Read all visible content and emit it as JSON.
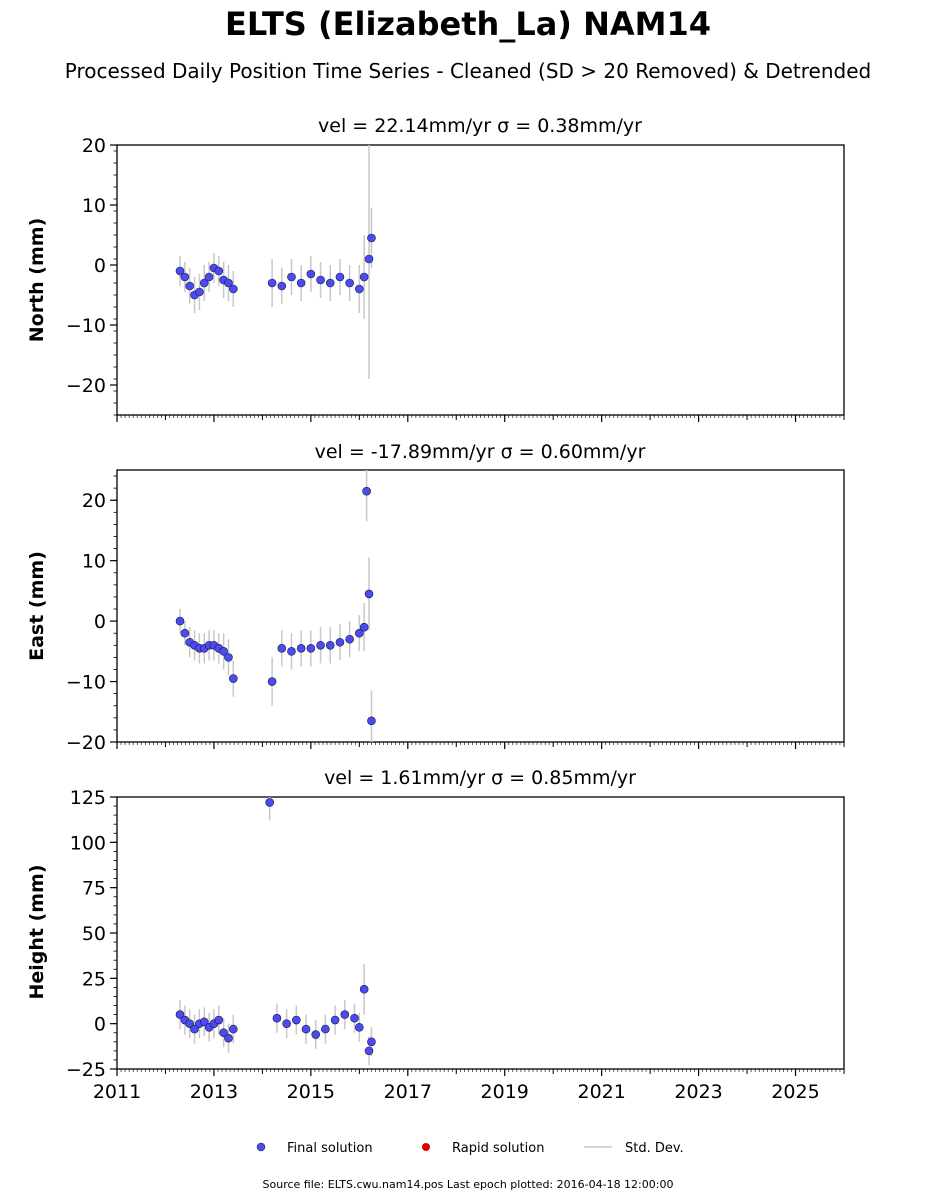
{
  "header": {
    "title": "ELTS (Elizabeth_La) NAM14",
    "subtitle": "Processed Daily Position Time Series - Cleaned (SD > 20 Removed) & Detrended"
  },
  "legend": {
    "final": "Final solution",
    "rapid": "Rapid solution",
    "stddev": "Std. Dev."
  },
  "footer": "Source file: ELTS.cwu.nam14.pos  Last epoch plotted: 2016-04-18 12:00:00",
  "colors": {
    "final": "#4b4bf0",
    "rapid": "#e00000",
    "stddev": "#c8c8c8"
  },
  "chart_data": [
    {
      "type": "scatter",
      "panel": "north",
      "title": "vel = 22.14mm/yr   σ = 0.38mm/yr",
      "ylabel": "North (mm)",
      "xlim": [
        2011,
        2026
      ],
      "ylim": [
        -25,
        20
      ],
      "yticks": [
        -20,
        -10,
        0,
        10,
        20
      ],
      "series": [
        {
          "name": "Final solution",
          "x": [
            2012.3,
            2012.4,
            2012.5,
            2012.6,
            2012.7,
            2012.8,
            2012.9,
            2013.0,
            2013.1,
            2013.2,
            2013.3,
            2013.4,
            2014.2,
            2014.4,
            2014.6,
            2014.8,
            2015.0,
            2015.2,
            2015.4,
            2015.6,
            2015.8,
            2016.0,
            2016.1,
            2016.2,
            2016.25
          ],
          "y": [
            -1,
            -2,
            -3.5,
            -5,
            -4.5,
            -3,
            -2,
            -0.5,
            -1,
            -2.5,
            -3,
            -4,
            -3,
            -3.5,
            -2,
            -3,
            -1.5,
            -2.5,
            -3,
            -2,
            -3,
            -4,
            -2,
            1,
            4.5
          ],
          "sd": [
            2.5,
            2.5,
            3,
            3,
            3,
            3,
            2.5,
            2.5,
            2.5,
            3,
            3,
            3,
            4,
            3,
            3,
            3,
            3,
            3,
            3,
            3,
            3,
            4,
            7,
            20,
            5
          ]
        }
      ]
    },
    {
      "type": "scatter",
      "panel": "east",
      "title": "vel = -17.89mm/yr   σ = 0.60mm/yr",
      "ylabel": "East (mm)",
      "xlim": [
        2011,
        2026
      ],
      "ylim": [
        -20,
        25
      ],
      "yticks": [
        -20,
        -10,
        0,
        10,
        20
      ],
      "series": [
        {
          "name": "Final solution",
          "x": [
            2012.3,
            2012.4,
            2012.5,
            2012.6,
            2012.7,
            2012.8,
            2012.9,
            2013.0,
            2013.1,
            2013.2,
            2013.3,
            2013.4,
            2014.2,
            2014.4,
            2014.6,
            2014.8,
            2015.0,
            2015.2,
            2015.4,
            2015.6,
            2015.8,
            2016.0,
            2016.1,
            2016.15,
            2016.2,
            2016.25
          ],
          "y": [
            0,
            -2,
            -3.5,
            -4,
            -4.5,
            -4.5,
            -4,
            -4,
            -4.5,
            -5,
            -6,
            -9.5,
            -10,
            -4.5,
            -5,
            -4.5,
            -4.5,
            -4,
            -4,
            -3.5,
            -3,
            -2,
            -1,
            21.5,
            4.5,
            -16.5
          ],
          "sd": [
            2,
            2,
            2.5,
            2.5,
            2.5,
            2.5,
            2.5,
            2.5,
            2.5,
            3,
            3,
            3,
            4,
            3,
            3,
            3,
            3,
            3,
            3,
            3,
            3,
            3,
            4,
            5,
            6,
            5
          ]
        }
      ]
    },
    {
      "type": "scatter",
      "panel": "height",
      "title": "vel = 1.61mm/yr   σ = 0.85mm/yr",
      "ylabel": "Height (mm)",
      "xlim": [
        2011,
        2026
      ],
      "ylim": [
        -25,
        125
      ],
      "yticks": [
        -25,
        0,
        25,
        50,
        75,
        100,
        125
      ],
      "xticks": [
        2011,
        2013,
        2015,
        2017,
        2019,
        2021,
        2023,
        2025
      ],
      "series": [
        {
          "name": "Final solution",
          "x": [
            2012.3,
            2012.4,
            2012.5,
            2012.6,
            2012.7,
            2012.8,
            2012.9,
            2013.0,
            2013.1,
            2013.2,
            2013.3,
            2013.4,
            2014.15,
            2014.3,
            2014.5,
            2014.7,
            2014.9,
            2015.1,
            2015.3,
            2015.5,
            2015.7,
            2015.9,
            2016.0,
            2016.1,
            2016.2,
            2016.25
          ],
          "y": [
            5,
            2,
            0,
            -3,
            0,
            1,
            -2,
            0,
            2,
            -5,
            -8,
            -3,
            122,
            3,
            0,
            2,
            -3,
            -6,
            -3,
            2,
            5,
            3,
            -2,
            19,
            -15,
            -10
          ],
          "sd": [
            8,
            8,
            8,
            8,
            8,
            8,
            8,
            8,
            8,
            8,
            8,
            8,
            10,
            8,
            8,
            8,
            8,
            8,
            8,
            8,
            8,
            8,
            8,
            14,
            8,
            8
          ]
        }
      ]
    }
  ]
}
